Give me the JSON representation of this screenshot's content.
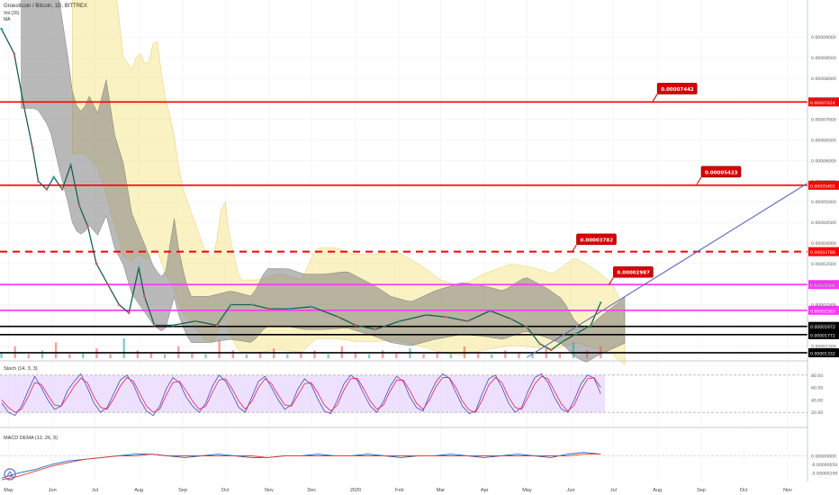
{
  "header": {
    "symbol_line": "Groestlcoin / Bitcoin, 1D, BITTREX",
    "volume_line": "Vol (20)",
    "ma_line": "MA"
  },
  "colors": {
    "bull": "#26a69a",
    "bear": "#ef5350",
    "cloud_near": "#808080",
    "cloud_far": "#f5e27a",
    "stoch_band": "#e0c8ff",
    "stoch_k": "#3f51b5",
    "stoch_d": "#e91e63",
    "resistance": "#ff0000",
    "band": "#ff33ff",
    "support": "#000000",
    "trendline": "#5c6bc0"
  },
  "chart_data": [
    {
      "type": "line",
      "panel": "price",
      "title": "Groestlcoin / Bitcoin, 1D, BITTREX",
      "y_axis": {
        "scale": "linear",
        "range": [
          1.2e-05,
          9.9e-05
        ],
        "tick_labels": [
          "0.00009000",
          "0.00008500",
          "0.00008000",
          "0.00007500",
          "0.00007000",
          "0.00006500",
          "0.00006000",
          "0.00005500",
          "0.00005000",
          "0.00004500",
          "0.00004000",
          "0.00003500",
          "0.00003000",
          "0.00002500",
          "0.00002000",
          "0.00001500"
        ]
      },
      "x_axis": {
        "range": [
          "2019-04-25",
          "2020-11-15"
        ],
        "tick_labels": [
          {
            "label": "May",
            "date": "2019-05-01"
          },
          {
            "label": "Jun",
            "date": "2019-06-01"
          },
          {
            "label": "Jul",
            "date": "2019-07-01"
          },
          {
            "label": "Aug",
            "date": "2019-08-01"
          },
          {
            "label": "Sep",
            "date": "2019-09-01"
          },
          {
            "label": "Oct",
            "date": "2019-10-01"
          },
          {
            "label": "Nov",
            "date": "2019-11-01"
          },
          {
            "label": "Dec",
            "date": "2019-12-01"
          },
          {
            "label": "2020",
            "date": "2020-01-01"
          },
          {
            "label": "Feb",
            "date": "2020-02-01"
          },
          {
            "label": "Mar",
            "date": "2020-03-01"
          },
          {
            "label": "Apr",
            "date": "2020-04-01"
          },
          {
            "label": "May",
            "date": "2020-05-01"
          },
          {
            "label": "Jun",
            "date": "2020-06-01"
          },
          {
            "label": "Jul",
            "date": "2020-07-01"
          },
          {
            "label": "Aug",
            "date": "2020-08-01"
          },
          {
            "label": "Sep",
            "date": "2020-09-01"
          },
          {
            "label": "Oct",
            "date": "2020-10-01"
          },
          {
            "label": "Nov",
            "date": "2020-11-01"
          }
        ]
      },
      "price_series": [
        {
          "date": "2019-04-26",
          "value": 9.2e-05
        },
        {
          "date": "2019-05-05",
          "value": 8.6e-05
        },
        {
          "date": "2019-05-12",
          "value": 7.3e-05
        },
        {
          "date": "2019-05-18",
          "value": 6.3e-05
        },
        {
          "date": "2019-05-22",
          "value": 5.5e-05
        },
        {
          "date": "2019-05-28",
          "value": 5.3e-05
        },
        {
          "date": "2019-06-02",
          "value": 5.6e-05
        },
        {
          "date": "2019-06-08",
          "value": 5.3e-05
        },
        {
          "date": "2019-06-14",
          "value": 5.9e-05
        },
        {
          "date": "2019-06-20",
          "value": 4.9e-05
        },
        {
          "date": "2019-06-26",
          "value": 4.4e-05
        },
        {
          "date": "2019-07-02",
          "value": 3.5e-05
        },
        {
          "date": "2019-07-10",
          "value": 3e-05
        },
        {
          "date": "2019-07-18",
          "value": 2.5e-05
        },
        {
          "date": "2019-07-25",
          "value": 2.3e-05
        },
        {
          "date": "2019-08-01",
          "value": 3.4e-05
        },
        {
          "date": "2019-08-05",
          "value": 2.7e-05
        },
        {
          "date": "2019-08-12",
          "value": 2e-05
        },
        {
          "date": "2019-08-25",
          "value": 2e-05
        },
        {
          "date": "2019-09-10",
          "value": 2.1e-05
        },
        {
          "date": "2019-09-25",
          "value": 2e-05
        },
        {
          "date": "2019-10-05",
          "value": 2.5e-05
        },
        {
          "date": "2019-10-20",
          "value": 2.5e-05
        },
        {
          "date": "2019-11-01",
          "value": 2.4e-05
        },
        {
          "date": "2019-11-15",
          "value": 2.4e-05
        },
        {
          "date": "2019-12-01",
          "value": 2.45e-05
        },
        {
          "date": "2019-12-20",
          "value": 2.2e-05
        },
        {
          "date": "2020-01-01",
          "value": 2e-05
        },
        {
          "date": "2020-01-15",
          "value": 1.9e-05
        },
        {
          "date": "2020-02-01",
          "value": 2.1e-05
        },
        {
          "date": "2020-02-20",
          "value": 2.25e-05
        },
        {
          "date": "2020-03-05",
          "value": 2.2e-05
        },
        {
          "date": "2020-03-20",
          "value": 2.1e-05
        },
        {
          "date": "2020-04-05",
          "value": 2.35e-05
        },
        {
          "date": "2020-04-20",
          "value": 2.15e-05
        },
        {
          "date": "2020-05-01",
          "value": 1.95e-05
        },
        {
          "date": "2020-05-10",
          "value": 1.55e-05
        },
        {
          "date": "2020-05-18",
          "value": 1.4e-05
        },
        {
          "date": "2020-05-26",
          "value": 1.6e-05
        },
        {
          "date": "2020-06-05",
          "value": 1.8e-05
        },
        {
          "date": "2020-06-15",
          "value": 2e-05
        },
        {
          "date": "2020-06-22",
          "value": 2.55e-05
        }
      ],
      "horizontal_levels": [
        {
          "label": "0.00007424",
          "price": 7.424e-05,
          "style": "solid",
          "color": "#ff0000"
        },
        {
          "label": "0.00005401",
          "price": 5.401e-05,
          "style": "solid",
          "color": "#ff0000"
        },
        {
          "label": "0.00003788",
          "price": 3.788e-05,
          "style": "dashed",
          "color": "#ff0000"
        },
        {
          "label": "0.00002988",
          "price": 2.988e-05,
          "style": "solid",
          "color": "#ff33ff"
        },
        {
          "label": "0.00002363",
          "price": 2.363e-05,
          "style": "solid",
          "color": "#ff33ff"
        },
        {
          "label": "0.00001972",
          "price": 1.972e-05,
          "style": "solid",
          "color": "#000000"
        },
        {
          "label": "0.00001772",
          "price": 1.772e-05,
          "style": "solid",
          "color": "#000000"
        },
        {
          "label": "0.00001332",
          "price": 1.332e-05,
          "style": "solid",
          "color": "#000000"
        }
      ],
      "target_labels": [
        {
          "text": "0.00007442",
          "date": "2020-08-01",
          "price": 7.442e-05
        },
        {
          "text": "0.00005423",
          "date": "2020-09-01",
          "price": 5.423e-05
        },
        {
          "text": "0.00003782",
          "date": "2020-06-05",
          "price": 3.782e-05
        },
        {
          "text": "0.00002987",
          "date": "2020-07-01",
          "price": 2.987e-05
        }
      ],
      "trendline": {
        "start": {
          "date": "2020-05-01",
          "price": 1.22e-05
        },
        "end": {
          "date": "2020-11-15",
          "price": 5.45e-05
        }
      },
      "volume_bars": [
        0.3,
        0.6,
        0.2,
        0.4,
        0.8,
        0.2,
        0.3,
        0.5,
        0.2,
        1.0,
        0.4,
        0.3,
        0.2,
        0.6,
        0.3,
        0.2,
        0.9,
        0.4,
        0.2,
        0.3,
        0.5,
        0.2,
        0.3,
        0.4,
        0.2,
        0.6,
        0.3,
        0.2,
        0.4,
        0.3,
        0.5,
        0.2,
        0.3,
        0.2,
        0.6,
        0.3,
        0.2,
        0.4,
        0.3,
        0.2,
        0.5,
        0.3,
        0.8,
        0.4,
        0.6
      ]
    },
    {
      "type": "line",
      "panel": "stoch",
      "title": "Stoch (14, 3, 3)",
      "y_axis": {
        "range": [
          0,
          100
        ],
        "tick_labels": [
          "80.00",
          "60.00",
          "40.00",
          "20.00"
        ]
      },
      "band": [
        20,
        80
      ],
      "series": [
        {
          "values": [
            35,
            20,
            15,
            30,
            55,
            78,
            60,
            40,
            25,
            30,
            55,
            70,
            82,
            60,
            35,
            20,
            28,
            50,
            72,
            80,
            65,
            40,
            22,
            15,
            30,
            58,
            76,
            68,
            45,
            30,
            20,
            35,
            62,
            80,
            70,
            50,
            28,
            20,
            45,
            70,
            78,
            60,
            40,
            25,
            32,
            58,
            74,
            65,
            42,
            22,
            18,
            40,
            66,
            80,
            72,
            50,
            30,
            20,
            38,
            62,
            78,
            70,
            45,
            28,
            22,
            48,
            70,
            82,
            75,
            52,
            30,
            18,
            22,
            50,
            74,
            80,
            60,
            35,
            20,
            28,
            55,
            76,
            82,
            68,
            44,
            26,
            20,
            40,
            66,
            80,
            75,
            50
          ]
        },
        {
          "values": [
            40,
            28,
            20,
            25,
            45,
            68,
            65,
            48,
            32,
            30,
            45,
            62,
            75,
            68,
            45,
            28,
            25,
            42,
            62,
            76,
            70,
            50,
            30,
            20,
            25,
            48,
            68,
            70,
            55,
            38,
            25,
            30,
            52,
            72,
            74,
            58,
            38,
            25,
            38,
            60,
            74,
            66,
            48,
            32,
            30,
            48,
            66,
            68,
            52,
            32,
            22,
            32,
            56,
            74,
            75,
            58,
            38,
            25,
            32,
            54,
            72,
            72,
            55,
            35,
            25,
            40,
            62,
            76,
            76,
            60,
            38,
            24,
            20,
            40,
            64,
            76,
            68,
            45,
            28,
            25,
            45,
            66,
            78,
            74,
            54,
            34,
            22,
            32,
            56,
            74,
            76,
            60
          ]
        }
      ]
    },
    {
      "type": "line",
      "panel": "macd",
      "title": "MACD DEMA (12, 26, 9)",
      "y_axis": {
        "range": [
          -1.5e-06,
          1.5e-06
        ],
        "tick_labels": [
          "0.00000000",
          "-0.00000050",
          "-0.00000100"
        ]
      },
      "series": [
        {
          "values": [
            -1.3e-06,
            -1e-06,
            -8e-07,
            -5e-07,
            -3e-07,
            -2e-07,
            -1e-07,
            0.0,
            1e-07,
            1e-07,
            0.0,
            -1e-07,
            0.0,
            1e-07,
            0.0,
            -1e-07,
            -1e-07,
            0.0,
            0.0,
            1e-07,
            0.0,
            0.0,
            1e-07,
            0.0,
            -1e-07,
            0.0,
            0.0,
            1e-07,
            0.0,
            -1e-07,
            0.0,
            1e-07,
            0.0,
            -1e-07,
            1e-07,
            2e-07,
            1e-07
          ]
        },
        {
          "values": [
            -1.4e-06,
            -1.2e-06,
            -9e-07,
            -6e-07,
            -4e-07,
            -2e-07,
            -1e-07,
            0.0,
            0.0,
            1e-07,
            0.0,
            0.0,
            0.0,
            0.0,
            0.0,
            0.0,
            -1e-07,
            0.0,
            0.0,
            0.0,
            0.0,
            0.0,
            0.0,
            0.0,
            0.0,
            0.0,
            0.0,
            0.0,
            0.0,
            0.0,
            0.0,
            0.0,
            0.0,
            0.0,
            0.0,
            1e-07,
            1e-07
          ]
        }
      ]
    }
  ]
}
